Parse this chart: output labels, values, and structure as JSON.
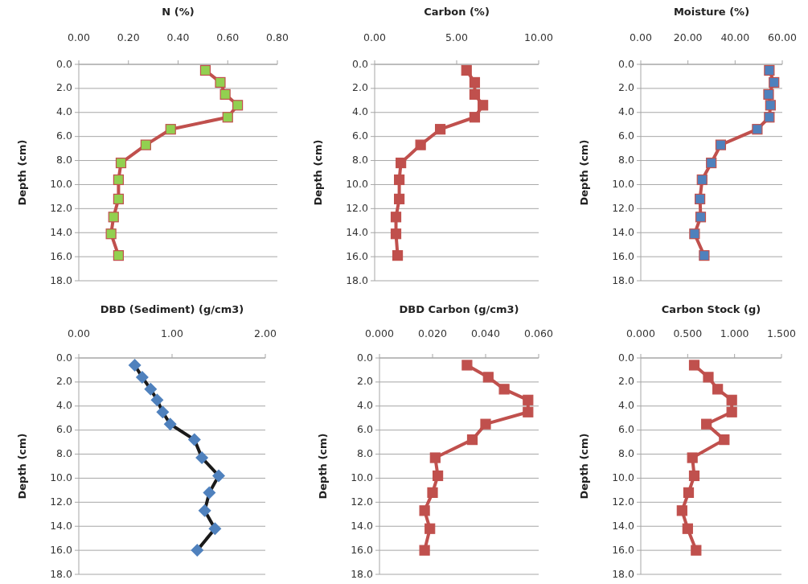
{
  "chart_data": [
    {
      "type": "line",
      "title": "N (%)",
      "ylabel": "Depth (cm)",
      "xlim": [
        0,
        0.8
      ],
      "xticks": [
        {
          "value": 0,
          "label": "0.00"
        },
        {
          "value": 0.2,
          "label": "0.20"
        },
        {
          "value": 0.4,
          "label": "0.40"
        },
        {
          "value": 0.6,
          "label": "0.60"
        },
        {
          "value": 0.8,
          "label": "0.80"
        }
      ],
      "ylim": [
        18,
        0
      ],
      "yticks": [
        {
          "value": 0,
          "label": "0.0"
        },
        {
          "value": 2,
          "label": "2.0"
        },
        {
          "value": 4,
          "label": "4.0"
        },
        {
          "value": 6,
          "label": "6.0"
        },
        {
          "value": 8,
          "label": "8.0"
        },
        {
          "value": 10,
          "label": "10.0"
        },
        {
          "value": 12,
          "label": "12.0"
        },
        {
          "value": 14,
          "label": "14.0"
        },
        {
          "value": 16,
          "label": "16.0"
        },
        {
          "value": 18,
          "label": "18.0"
        }
      ],
      "grid": "y",
      "marker": "square",
      "series": [
        {
          "color": "#c0504d",
          "colors": [
            "#92d050",
            "#92d050",
            "#92d050",
            "#92d050",
            "#92d050",
            "#92d050",
            "#92d050",
            "#92d050",
            "#92d050",
            "#92d050",
            "#92d050",
            "#92d050",
            "#92d050"
          ],
          "x": [
            0.51,
            0.57,
            0.59,
            0.64,
            0.6,
            0.37,
            0.27,
            0.17,
            0.16,
            0.16,
            0.14,
            0.13,
            0.16
          ],
          "values": [
            0.5,
            1.5,
            2.5,
            3.4,
            4.4,
            5.4,
            6.7,
            8.2,
            9.6,
            11.2,
            12.7,
            14.1,
            15.9
          ]
        }
      ]
    },
    {
      "type": "line",
      "title": "Carbon (%)",
      "ylabel": "Depth (cm)",
      "xlim": [
        0,
        10
      ],
      "xticks": [
        {
          "value": 0,
          "label": "0.00"
        },
        {
          "value": 5,
          "label": "5.00"
        },
        {
          "value": 10,
          "label": "10.00"
        }
      ],
      "ylim": [
        18,
        0
      ],
      "yticks": [
        {
          "value": 0,
          "label": "0.0"
        },
        {
          "value": 2,
          "label": "2.0"
        },
        {
          "value": 4,
          "label": "4.0"
        },
        {
          "value": 6,
          "label": "6.0"
        },
        {
          "value": 8,
          "label": "8.0"
        },
        {
          "value": 10,
          "label": "10.0"
        },
        {
          "value": 12,
          "label": "12.0"
        },
        {
          "value": 14,
          "label": "14.0"
        },
        {
          "value": 16,
          "label": "16.0"
        },
        {
          "value": 18,
          "label": "18.0"
        }
      ],
      "grid": "y",
      "marker": "square",
      "series": [
        {
          "color": "#c0504d",
          "colors": [
            "#c0504d",
            "#c0504d",
            "#c0504d",
            "#c0504d",
            "#c0504d",
            "#c0504d",
            "#c0504d",
            "#c0504d",
            "#c0504d",
            "#c0504d",
            "#c0504d",
            "#c0504d",
            "#c0504d"
          ],
          "x": [
            5.6,
            6.1,
            6.1,
            6.6,
            6.1,
            4.0,
            2.8,
            1.6,
            1.5,
            1.5,
            1.3,
            1.3,
            1.4
          ],
          "values": [
            0.5,
            1.5,
            2.5,
            3.4,
            4.4,
            5.4,
            6.7,
            8.2,
            9.6,
            11.2,
            12.7,
            14.1,
            15.9
          ]
        }
      ]
    },
    {
      "type": "line",
      "title": "Moisture (%)",
      "ylabel": "Depth (cm)",
      "xlim": [
        0,
        60
      ],
      "xticks": [
        {
          "value": 0,
          "label": "0.00"
        },
        {
          "value": 20,
          "label": "20.00"
        },
        {
          "value": 40,
          "label": "40.00"
        },
        {
          "value": 60,
          "label": "60.00"
        }
      ],
      "ylim": [
        18,
        0
      ],
      "yticks": [
        {
          "value": 0,
          "label": "0.0"
        },
        {
          "value": 2,
          "label": "2.0"
        },
        {
          "value": 4,
          "label": "4.0"
        },
        {
          "value": 6,
          "label": "6.0"
        },
        {
          "value": 8,
          "label": "8.0"
        },
        {
          "value": 10,
          "label": "10.0"
        },
        {
          "value": 12,
          "label": "12.0"
        },
        {
          "value": 14,
          "label": "14.0"
        },
        {
          "value": 16,
          "label": "16.0"
        },
        {
          "value": 18,
          "label": "18.0"
        }
      ],
      "grid": "y",
      "marker": "square",
      "series": [
        {
          "color": "#c0504d",
          "colors": [
            "#4f81bd",
            "#4f81bd",
            "#4f81bd",
            "#4f81bd",
            "#4f81bd",
            "#4f81bd",
            "#4f81bd",
            "#4f81bd",
            "#4f81bd",
            "#4f81bd",
            "#4f81bd",
            "#4f81bd",
            "#4f81bd"
          ],
          "x": [
            54.5,
            56.5,
            54.2,
            55,
            54.5,
            49.4,
            33.9,
            29.9,
            26,
            25.1,
            25.4,
            22.8,
            26.9
          ],
          "values": [
            0.5,
            1.5,
            2.5,
            3.4,
            4.4,
            5.4,
            6.7,
            8.2,
            9.6,
            11.2,
            12.7,
            14.1,
            15.9
          ]
        }
      ]
    },
    {
      "type": "line",
      "title": "DBD (Sediment) (g/cm3)",
      "ylabel": "Depth (cm)",
      "xlim": [
        0,
        2
      ],
      "xticks": [
        {
          "value": 0,
          "label": "0.00"
        },
        {
          "value": 1,
          "label": "1.00"
        },
        {
          "value": 2,
          "label": "2.00"
        }
      ],
      "ylim": [
        18,
        0
      ],
      "yticks": [
        {
          "value": 0,
          "label": "0.0"
        },
        {
          "value": 2,
          "label": "2.0"
        },
        {
          "value": 4,
          "label": "4.0"
        },
        {
          "value": 6,
          "label": "6.0"
        },
        {
          "value": 8,
          "label": "8.0"
        },
        {
          "value": 10,
          "label": "10.0"
        },
        {
          "value": 12,
          "label": "12.0"
        },
        {
          "value": 14,
          "label": "14.0"
        },
        {
          "value": 16,
          "label": "16.0"
        },
        {
          "value": 18,
          "label": "18.0"
        }
      ],
      "grid": "y",
      "marker": "diamond",
      "series": [
        {
          "color": "#1a1a1a",
          "colors": [
            "#4f81bd",
            "#4f81bd",
            "#4f81bd",
            "#4f81bd",
            "#4f81bd",
            "#4f81bd",
            "#4f81bd",
            "#4f81bd",
            "#4f81bd",
            "#4f81bd",
            "#4f81bd",
            "#4f81bd",
            "#4f81bd"
          ],
          "x": [
            0.6,
            0.68,
            0.77,
            0.84,
            0.9,
            0.98,
            1.24,
            1.32,
            1.5,
            1.4,
            1.35,
            1.46,
            1.27
          ],
          "values": [
            0.6,
            1.6,
            2.6,
            3.5,
            4.5,
            5.5,
            6.8,
            8.3,
            9.8,
            11.2,
            12.7,
            14.2,
            16
          ]
        }
      ]
    },
    {
      "type": "line",
      "title": "DBD Carbon (g/cm3)",
      "ylabel": "Depth (cm)",
      "xlim": [
        0,
        0.06
      ],
      "xticks": [
        {
          "value": 0,
          "label": "0.000"
        },
        {
          "value": 0.02,
          "label": "0.020"
        },
        {
          "value": 0.04,
          "label": "0.040"
        },
        {
          "value": 0.06,
          "label": "0.060"
        }
      ],
      "ylim": [
        18,
        0
      ],
      "yticks": [
        {
          "value": 0,
          "label": "0.0"
        },
        {
          "value": 2,
          "label": "2.0"
        },
        {
          "value": 4,
          "label": "4.0"
        },
        {
          "value": 6,
          "label": "6.0"
        },
        {
          "value": 8,
          "label": "8.0"
        },
        {
          "value": 10,
          "label": "10.0"
        },
        {
          "value": 12,
          "label": "12.0"
        },
        {
          "value": 14,
          "label": "14.0"
        },
        {
          "value": 16,
          "label": "16.0"
        },
        {
          "value": 18,
          "label": "18.0"
        }
      ],
      "grid": "y",
      "marker": "square",
      "series": [
        {
          "color": "#c0504d",
          "colors": [
            "#c0504d",
            "#c0504d",
            "#c0504d",
            "#c0504d",
            "#c0504d",
            "#c0504d",
            "#c0504d",
            "#c0504d",
            "#c0504d",
            "#c0504d",
            "#c0504d",
            "#c0504d",
            "#c0504d"
          ],
          "x": [
            0.033,
            0.041,
            0.047,
            0.056,
            0.056,
            0.04,
            0.035,
            0.021,
            0.022,
            0.02,
            0.017,
            0.019,
            0.017
          ],
          "values": [
            0.6,
            1.6,
            2.6,
            3.5,
            4.5,
            5.5,
            6.8,
            8.3,
            9.8,
            11.2,
            12.7,
            14.2,
            16
          ]
        }
      ]
    },
    {
      "type": "line",
      "title": "Carbon Stock (g)",
      "ylabel": "Depth (cm)",
      "xlim": [
        0,
        1.5
      ],
      "xticks": [
        {
          "value": 0,
          "label": "0.000"
        },
        {
          "value": 0.5,
          "label": "0.500"
        },
        {
          "value": 1,
          "label": "1.000"
        },
        {
          "value": 1.5,
          "label": "1.500"
        }
      ],
      "ylim": [
        18,
        0
      ],
      "yticks": [
        {
          "value": 0,
          "label": "0.0"
        },
        {
          "value": 2,
          "label": "2.0"
        },
        {
          "value": 4,
          "label": "4.0"
        },
        {
          "value": 6,
          "label": "6.0"
        },
        {
          "value": 8,
          "label": "8.0"
        },
        {
          "value": 10,
          "label": "10.0"
        },
        {
          "value": 12,
          "label": "12.0"
        },
        {
          "value": 14,
          "label": "14.0"
        },
        {
          "value": 16,
          "label": "16.0"
        },
        {
          "value": 18,
          "label": "18.0"
        }
      ],
      "grid": "y",
      "marker": "square",
      "series": [
        {
          "color": "#c0504d",
          "colors": [
            "#c0504d",
            "#c0504d",
            "#c0504d",
            "#c0504d",
            "#c0504d",
            "#c0504d",
            "#c0504d",
            "#c0504d",
            "#c0504d",
            "#c0504d",
            "#c0504d",
            "#c0504d",
            "#c0504d"
          ],
          "x": [
            0.57,
            0.72,
            0.82,
            0.97,
            0.97,
            0.7,
            0.89,
            0.55,
            0.57,
            0.51,
            0.44,
            0.5,
            0.59
          ],
          "values": [
            0.6,
            1.6,
            2.6,
            3.5,
            4.5,
            5.5,
            6.8,
            8.3,
            9.8,
            11.2,
            12.7,
            14.2,
            16
          ]
        }
      ]
    }
  ]
}
